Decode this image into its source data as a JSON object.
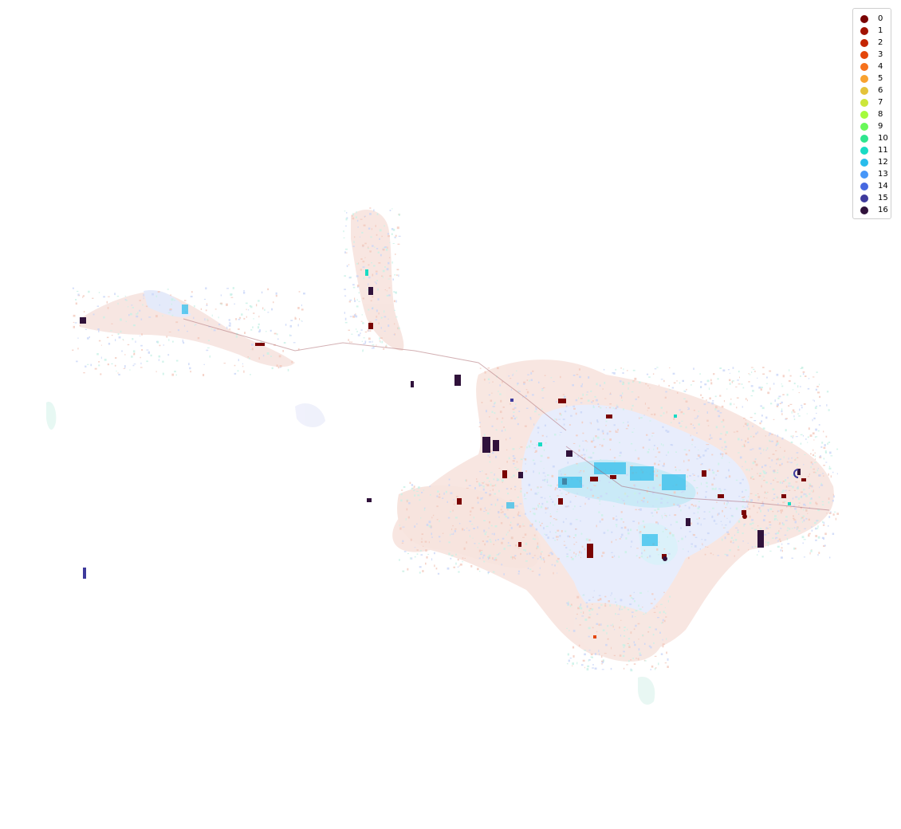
{
  "legend": {
    "items": [
      {
        "label": "0",
        "color": "#7a0403"
      },
      {
        "label": "1",
        "color": "#a21303"
      },
      {
        "label": "2",
        "color": "#c42503"
      },
      {
        "label": "3",
        "color": "#e4460a"
      },
      {
        "label": "4",
        "color": "#f6711c"
      },
      {
        "label": "5",
        "color": "#f9a22f"
      },
      {
        "label": "6",
        "color": "#e4c33a"
      },
      {
        "label": "7",
        "color": "#cce63a"
      },
      {
        "label": "8",
        "color": "#a4fc3c"
      },
      {
        "label": "9",
        "color": "#68f859"
      },
      {
        "label": "10",
        "color": "#2ee58e"
      },
      {
        "label": "11",
        "color": "#18dbc4"
      },
      {
        "label": "12",
        "color": "#28bceb"
      },
      {
        "label": "13",
        "color": "#4696f8"
      },
      {
        "label": "14",
        "color": "#4668e0"
      },
      {
        "label": "15",
        "color": "#3e3a9c"
      },
      {
        "label": "16",
        "color": "#30123b"
      }
    ]
  },
  "map": {
    "background": "#ffffff",
    "dominant_tints": {
      "cluster_0_to_3": "#f2c9bd",
      "cluster_12_to_14": "#c9d6f7",
      "cluster_10_to_11": "#c8f1e6"
    }
  }
}
